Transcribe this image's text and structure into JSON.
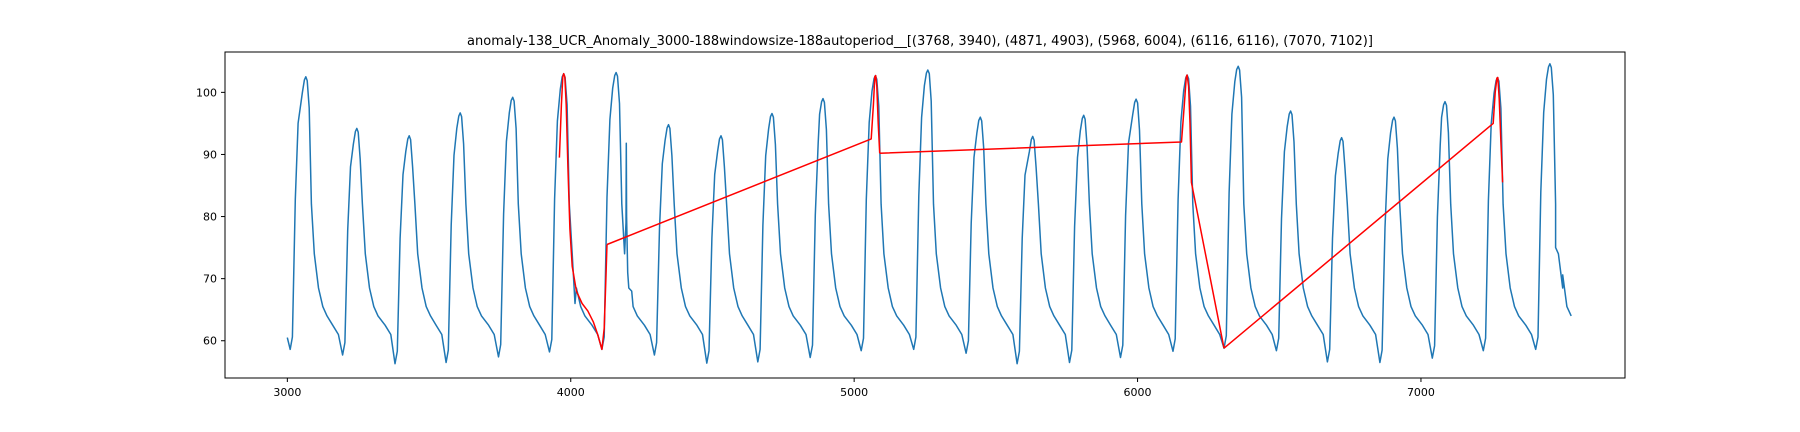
{
  "chart_data": {
    "type": "line",
    "title": "anomaly-138_UCR_Anomaly_3000-188windowsize-188autoperiod__[(3768, 3940), (4871, 4903), (5968, 6004), (6116, 6116), (7070, 7102)]",
    "xlabel": "",
    "ylabel": "",
    "xlim": [
      2780,
      7720
    ],
    "ylim": [
      54,
      106.5
    ],
    "x_ticks": [
      3000,
      4000,
      5000,
      6000,
      7000
    ],
    "y_ticks": [
      60,
      70,
      80,
      90,
      100
    ],
    "grid": false,
    "colors": {
      "signal": "#1f77b4",
      "anomaly": "#ff0000"
    },
    "series": [
      {
        "color": "#1f77b4",
        "kind": "periodic-signal",
        "x_start": 3000,
        "x_end": 7500,
        "peaks": [
          {
            "x": 3065,
            "y": 102.5
          },
          {
            "x": 3245,
            "y": 94.2
          },
          {
            "x": 3430,
            "y": 93.0
          },
          {
            "x": 3610,
            "y": 96.7
          },
          {
            "x": 3795,
            "y": 99.2
          },
          {
            "x": 3975,
            "y": 103.0
          },
          {
            "x": 4160,
            "y": 103.2
          },
          {
            "x": 4345,
            "y": 94.8
          },
          {
            "x": 4530,
            "y": 93.0
          },
          {
            "x": 4710,
            "y": 96.6
          },
          {
            "x": 4890,
            "y": 99.0
          },
          {
            "x": 5075,
            "y": 102.7
          },
          {
            "x": 5260,
            "y": 103.6
          },
          {
            "x": 5445,
            "y": 96.0
          },
          {
            "x": 5630,
            "y": 92.9
          },
          {
            "x": 5810,
            "y": 96.3
          },
          {
            "x": 5995,
            "y": 98.9
          },
          {
            "x": 6175,
            "y": 102.8
          },
          {
            "x": 6355,
            "y": 104.2
          },
          {
            "x": 6540,
            "y": 97.0
          },
          {
            "x": 6720,
            "y": 92.7
          },
          {
            "x": 6905,
            "y": 96.0
          },
          {
            "x": 7085,
            "y": 98.5
          },
          {
            "x": 7270,
            "y": 102.4
          },
          {
            "x": 7455,
            "y": 104.6
          }
        ],
        "troughs": [
          {
            "x": 3010,
            "y": 58.6
          },
          {
            "x": 3195,
            "y": 57.7
          },
          {
            "x": 3380,
            "y": 56.3
          },
          {
            "x": 3560,
            "y": 56.5
          },
          {
            "x": 3745,
            "y": 57.4
          },
          {
            "x": 3925,
            "y": 58.2
          },
          {
            "x": 4110,
            "y": 58.6
          },
          {
            "x": 4295,
            "y": 57.7
          },
          {
            "x": 4480,
            "y": 56.4
          },
          {
            "x": 4660,
            "y": 56.6
          },
          {
            "x": 4845,
            "y": 57.3
          },
          {
            "x": 5025,
            "y": 58.4
          },
          {
            "x": 5210,
            "y": 58.6
          },
          {
            "x": 5395,
            "y": 58.0
          },
          {
            "x": 5575,
            "y": 56.3
          },
          {
            "x": 5760,
            "y": 56.5
          },
          {
            "x": 5940,
            "y": 57.3
          },
          {
            "x": 6125,
            "y": 58.3
          },
          {
            "x": 6305,
            "y": 58.8
          },
          {
            "x": 6490,
            "y": 58.4
          },
          {
            "x": 6670,
            "y": 56.6
          },
          {
            "x": 6855,
            "y": 56.5
          },
          {
            "x": 7040,
            "y": 57.2
          },
          {
            "x": 7220,
            "y": 58.4
          },
          {
            "x": 7405,
            "y": 58.6
          }
        ],
        "spike": {
          "x": 4195,
          "from": 79.0,
          "to": 91.8
        },
        "final_point": {
          "x": 7500,
          "y": 70.6
        }
      },
      {
        "color": "#ff0000",
        "kind": "anomaly-overlay",
        "segments": [
          {
            "points": [
              [
                3960,
                89.5
              ],
              [
                3967,
                98
              ],
              [
                3972,
                102.5
              ],
              [
                3975,
                103.0
              ],
              [
                3979,
                102.5
              ],
              [
                3984,
                98
              ],
              [
                3990,
                88
              ],
              [
                3997,
                78
              ],
              [
                4005,
                72
              ],
              [
                4020,
                68
              ],
              [
                4040,
                66
              ],
              [
                4060,
                64.8
              ],
              [
                4080,
                63
              ],
              [
                4095,
                61
              ],
              [
                4110,
                58.6
              ],
              [
                4118,
                62
              ],
              [
                4124,
                70
              ],
              [
                4128,
                75.5
              ]
            ]
          },
          {
            "points": [
              [
                4128,
                75.5
              ],
              [
                5060,
                92.5
              ],
              [
                5068,
                98
              ],
              [
                5073,
                102.5
              ],
              [
                5076,
                102.7
              ],
              [
                5080,
                101
              ],
              [
                5085,
                95
              ],
              [
                5090,
                90.2
              ]
            ]
          },
          {
            "points": [
              [
                5090,
                90.2
              ],
              [
                6155,
                92.0
              ],
              [
                6165,
                98
              ],
              [
                6172,
                102.5
              ],
              [
                6175,
                102.8
              ],
              [
                6180,
                101
              ],
              [
                6185,
                95
              ],
              [
                6190,
                85.5
              ],
              [
                6305,
                58.8
              ]
            ]
          },
          {
            "points": [
              [
                6305,
                58.8
              ],
              [
                7255,
                95.0
              ],
              [
                7262,
                100
              ],
              [
                7268,
                102.3
              ],
              [
                7271,
                102.4
              ],
              [
                7276,
                99
              ],
              [
                7282,
                92
              ],
              [
                7288,
                85.5
              ]
            ]
          }
        ]
      }
    ]
  }
}
